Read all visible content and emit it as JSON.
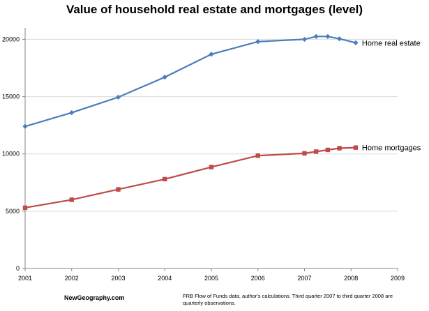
{
  "chart_data": {
    "type": "line",
    "title": "Value of household real estate and mortgages (level)",
    "xlabel": "",
    "ylabel": "",
    "xlim": [
      2001,
      2009
    ],
    "ylim": [
      0,
      21000
    ],
    "x_ticks": [
      "2001",
      "2002",
      "2003",
      "2004",
      "2005",
      "2006",
      "2007",
      "2008",
      "2009"
    ],
    "y_ticks": [
      "0",
      "5000",
      "10000",
      "15000",
      "20000"
    ],
    "grid": "horizontal",
    "series": [
      {
        "name": "Home real estate",
        "color": "#4a7ebb",
        "marker": "diamond",
        "x": [
          2001,
          2002,
          2003,
          2004,
          2005,
          2006,
          2007,
          2007.25,
          2007.5,
          2007.75,
          2008.1
        ],
        "y": [
          12400,
          13600,
          14950,
          16700,
          18700,
          19800,
          20000,
          20250,
          20250,
          20050,
          19700
        ]
      },
      {
        "name": "Home mortgages",
        "color": "#be4b48",
        "marker": "square",
        "x": [
          2001,
          2002,
          2003,
          2004,
          2005,
          2006,
          2007,
          2007.25,
          2007.5,
          2007.75,
          2008.1
        ],
        "y": [
          5300,
          6000,
          6900,
          7800,
          8850,
          9850,
          10050,
          10200,
          10350,
          10500,
          10550
        ]
      }
    ]
  },
  "footer": {
    "source_site": "NewGeography.com",
    "note": "FRB Flow of Funds data, author's calculations. Third quarter 2007 to third quarter 2008 are quarterly observations."
  }
}
